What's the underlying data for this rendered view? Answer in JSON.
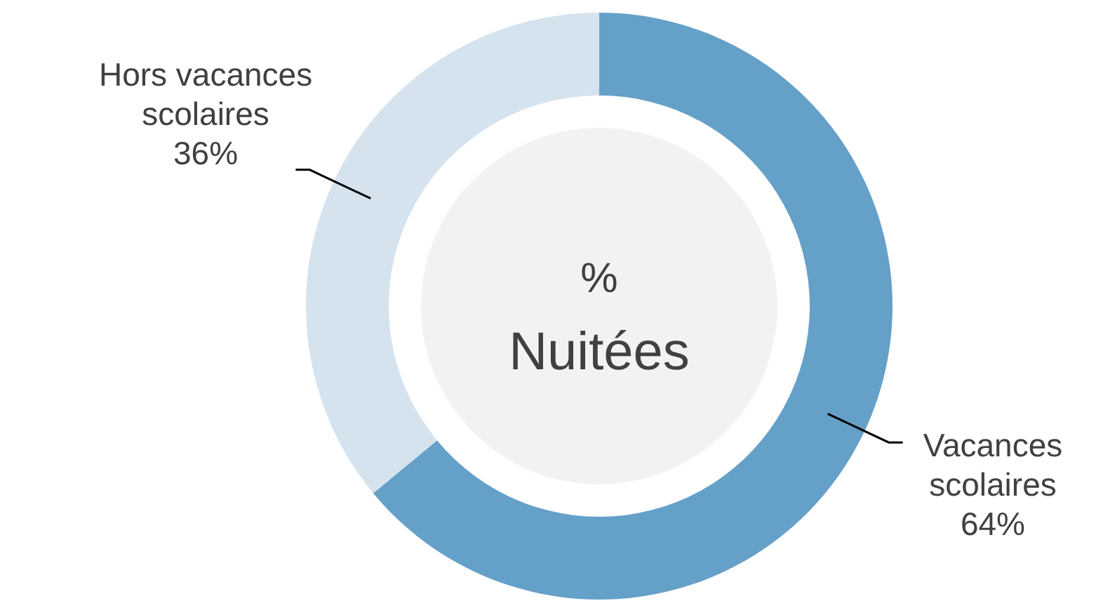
{
  "chart_data": {
    "type": "donut",
    "title": "% Nuitées",
    "categories": [
      "Vacances scolaires",
      "Hors vacances scolaires"
    ],
    "values": [
      64,
      36
    ],
    "colors": [
      "#65a0c8",
      "#d5e3ef"
    ],
    "value_labels": [
      "64%",
      "36%"
    ]
  }
}
